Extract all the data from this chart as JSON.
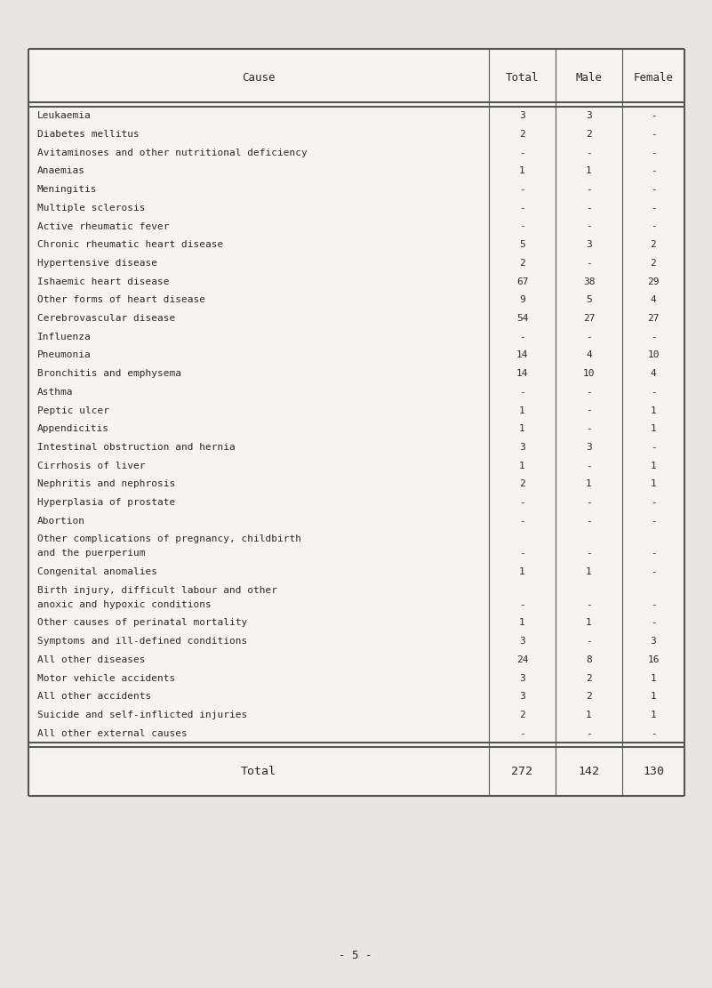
{
  "headers": [
    "Cause",
    "Total",
    "Male",
    "Female"
  ],
  "rows": [
    [
      "Leukaemia",
      "3",
      "3",
      "-"
    ],
    [
      "Diabetes mellitus",
      "2",
      "2",
      "-"
    ],
    [
      "Avitaminoses and other nutritional deficiency",
      "-",
      "-",
      "-"
    ],
    [
      "Anaemias",
      "1",
      "1",
      "-"
    ],
    [
      "Meningitis",
      "-",
      "-",
      "-"
    ],
    [
      "Multiple sclerosis",
      "-",
      "-",
      "-"
    ],
    [
      "Active rheumatic fever",
      "-",
      "-",
      "-"
    ],
    [
      "Chronic rheumatic heart disease",
      "5",
      "3",
      "2"
    ],
    [
      "Hypertensive disease",
      "2",
      "-",
      "2"
    ],
    [
      "Ishaemic heart disease",
      "67",
      "38",
      "29"
    ],
    [
      "Other forms of heart disease",
      "9",
      "5",
      "4"
    ],
    [
      "Cerebrovascular disease",
      "54",
      "27",
      "27"
    ],
    [
      "Influenza",
      "-",
      "-",
      "-"
    ],
    [
      "Pneumonia",
      "14",
      "4",
      "10"
    ],
    [
      "Bronchitis and emphysema",
      "14",
      "10",
      "4"
    ],
    [
      "Asthma",
      "-",
      "-",
      "-"
    ],
    [
      "Peptic ulcer",
      "1",
      "-",
      "1"
    ],
    [
      "Appendicitis",
      "1",
      "-",
      "1"
    ],
    [
      "Intestinal obstruction and hernia",
      "3",
      "3",
      "-"
    ],
    [
      "Cirrhosis of liver",
      "1",
      "-",
      "1"
    ],
    [
      "Nephritis and nephrosis",
      "2",
      "1",
      "1"
    ],
    [
      "Hyperplasia of prostate",
      "-",
      "-",
      "-"
    ],
    [
      "Abortion",
      "-",
      "-",
      "-"
    ],
    [
      "Other complications of pregnancy, childbirth\nand the puerperium",
      "-",
      "-",
      "-"
    ],
    [
      "Congenital anomalies",
      "1",
      "1",
      "-"
    ],
    [
      "Birth injury, difficult labour and other\nanoxic and hypoxic conditions",
      "-",
      "-",
      "-"
    ],
    [
      "Other causes of perinatal mortality",
      "1",
      "1",
      "-"
    ],
    [
      "Symptoms and ill-defined conditions",
      "3",
      "-",
      "3"
    ],
    [
      "All other diseases",
      "24",
      "8",
      "16"
    ],
    [
      "Motor vehicle accidents",
      "3",
      "2",
      "1"
    ],
    [
      "All other accidents",
      "3",
      "2",
      "1"
    ],
    [
      "Suicide and self-inflicted injuries",
      "2",
      "1",
      "1"
    ],
    [
      "All other external causes",
      "-",
      "-",
      "-"
    ]
  ],
  "total_row": [
    "Total",
    "272",
    "142",
    "130"
  ],
  "bg_color": "#e8e6e2",
  "table_bg": "#f5f4f1",
  "text_color": "#2a2a2a",
  "line_color": "#555555",
  "font_family": "DejaVu Sans Mono",
  "font_size": 8.0,
  "header_font_size": 9.0,
  "total_font_size": 9.5,
  "page_label": "- 5 -",
  "page_label_fontsize": 9.0
}
